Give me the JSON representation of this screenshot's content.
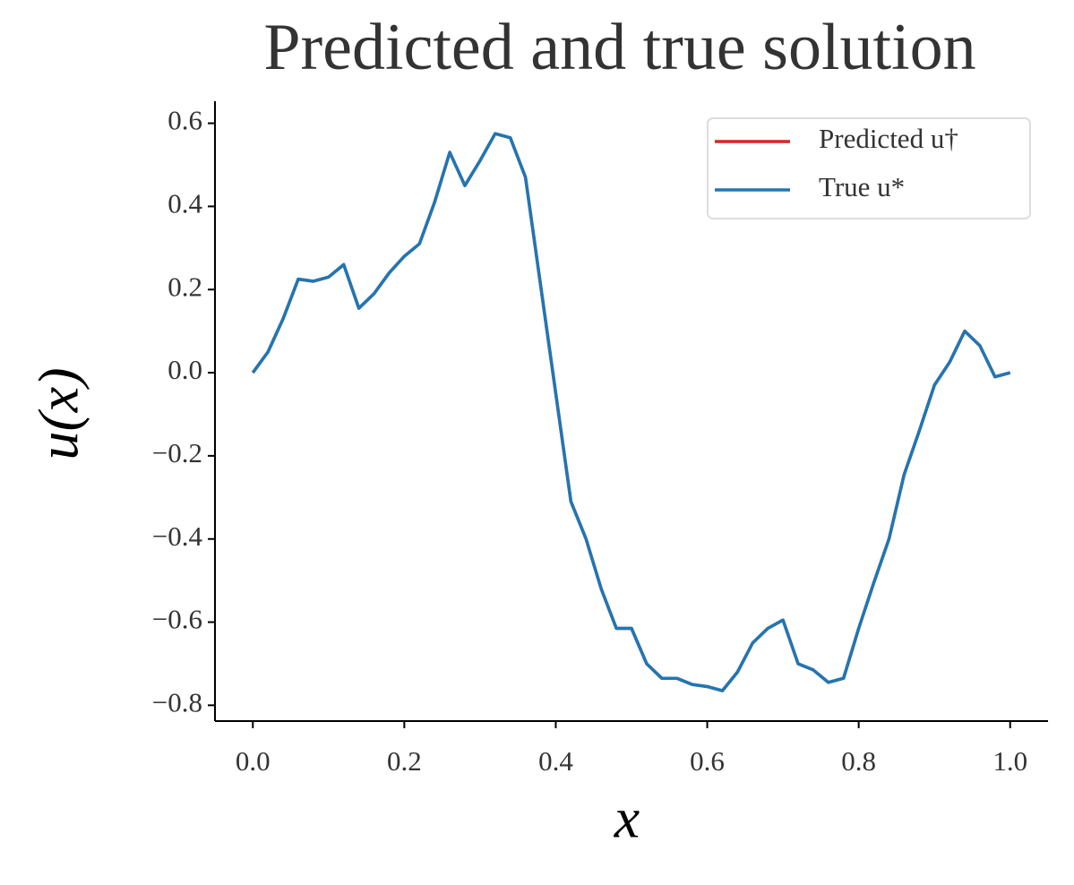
{
  "chart_data": {
    "type": "line",
    "title": "Predicted and true solution",
    "x_label": "x",
    "y_label": "u(x)",
    "x": [
      0,
      0.02,
      0.04,
      0.06,
      0.08,
      0.1,
      0.12,
      0.14,
      0.16,
      0.18,
      0.2,
      0.22,
      0.24,
      0.26,
      0.28,
      0.3,
      0.32,
      0.34,
      0.36,
      0.38,
      0.4,
      0.42,
      0.44,
      0.46,
      0.48,
      0.5,
      0.52,
      0.54,
      0.56,
      0.58,
      0.6,
      0.62,
      0.64,
      0.66,
      0.68,
      0.7,
      0.72,
      0.74,
      0.76,
      0.78,
      0.8,
      0.82,
      0.84,
      0.86,
      0.88,
      0.9,
      0.92,
      0.94,
      0.96,
      0.98,
      1
    ],
    "series": [
      {
        "name": "Predicted u†",
        "color": "#d62728",
        "values": [
          0,
          0.05,
          0.13,
          0.225,
          0.22,
          0.23,
          0.26,
          0.155,
          0.19,
          0.24,
          0.28,
          0.31,
          0.41,
          0.53,
          0.45,
          0.51,
          0.575,
          0.565,
          0.47,
          0.21,
          -0.05,
          -0.31,
          -0.4,
          -0.52,
          -0.615,
          -0.615,
          -0.7,
          -0.735,
          -0.735,
          -0.75,
          -0.755,
          -0.765,
          -0.72,
          -0.65,
          -0.615,
          -0.595,
          -0.7,
          -0.715,
          -0.745,
          -0.735,
          -0.615,
          -0.505,
          -0.4,
          -0.245,
          -0.14,
          -0.03,
          0.025,
          0.1,
          0.065,
          -0.01,
          0
        ]
      },
      {
        "name": "True u*",
        "color": "#1f77b4",
        "values": [
          0,
          0.05,
          0.13,
          0.225,
          0.22,
          0.23,
          0.26,
          0.155,
          0.19,
          0.24,
          0.28,
          0.31,
          0.41,
          0.53,
          0.45,
          0.51,
          0.575,
          0.565,
          0.47,
          0.21,
          -0.05,
          -0.31,
          -0.4,
          -0.52,
          -0.615,
          -0.615,
          -0.7,
          -0.735,
          -0.735,
          -0.75,
          -0.755,
          -0.765,
          -0.72,
          -0.65,
          -0.615,
          -0.595,
          -0.7,
          -0.715,
          -0.745,
          -0.735,
          -0.615,
          -0.505,
          -0.4,
          -0.245,
          -0.14,
          -0.03,
          0.025,
          0.1,
          0.065,
          -0.01,
          0
        ]
      }
    ],
    "xlim": [
      -0.05,
      1.05
    ],
    "ylim": [
      -0.838,
      0.653
    ],
    "xticks": [
      {
        "value": 0,
        "label": "0.0"
      },
      {
        "value": 0.2,
        "label": "0.2"
      },
      {
        "value": 0.4,
        "label": "0.4"
      },
      {
        "value": 0.6,
        "label": "0.6"
      },
      {
        "value": 0.8,
        "label": "0.8"
      },
      {
        "value": 1,
        "label": "1.0"
      }
    ],
    "yticks": [
      {
        "value": -0.8,
        "label": "−0.8"
      },
      {
        "value": -0.6,
        "label": "−0.6"
      },
      {
        "value": -0.4,
        "label": "−0.4"
      },
      {
        "value": -0.2,
        "label": "−0.2"
      },
      {
        "value": 0,
        "label": "0.0"
      },
      {
        "value": 0.2,
        "label": "0.2"
      },
      {
        "value": 0.4,
        "label": "0.4"
      },
      {
        "value": 0.6,
        "label": "0.6"
      }
    ],
    "grid": false,
    "legend": "upper right"
  }
}
